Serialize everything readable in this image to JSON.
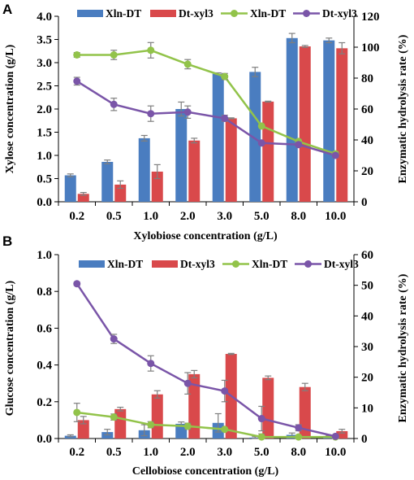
{
  "colors": {
    "bar_xln": "#4a7dc0",
    "bar_dt": "#d9494b",
    "line_xln": "#92c34a",
    "line_dt": "#7a55a8",
    "error": "#7f7f7f",
    "axis": "#000000"
  },
  "chart_data": [
    {
      "panel": "A",
      "type": "bar+line",
      "categories": [
        "0.2",
        "0.5",
        "1.0",
        "2.0",
        "3.0",
        "5.0",
        "8.0",
        "10.0"
      ],
      "xlabel": "Xylobiose concentration (g/L)",
      "ylabel_left": "Xylose concentration (g/L)",
      "ylabel_right": "Enzymatic hydrolysis rate (%)",
      "ylim_left": [
        0,
        4.0
      ],
      "yticks_left": [
        "0.0",
        "0.5",
        "1.0",
        "1.5",
        "2.0",
        "2.5",
        "3.0",
        "3.5",
        "4.0"
      ],
      "ylim_right": [
        0,
        120
      ],
      "yticks_right": [
        "0",
        "20",
        "40",
        "60",
        "80",
        "100",
        "120"
      ],
      "legend": [
        "Xln-DT",
        "Dt-xyl3",
        "Xln-DT",
        "Dt-xyl3"
      ],
      "legend_position": "top",
      "grid": false,
      "bars": [
        {
          "name": "Xln-DT",
          "values": [
            0.57,
            0.86,
            1.37,
            2.0,
            2.76,
            2.8,
            3.53,
            3.48
          ],
          "errors": [
            0.03,
            0.04,
            0.06,
            0.15,
            0.02,
            0.1,
            0.1,
            0.05
          ]
        },
        {
          "name": "Dt-xyl3",
          "values": [
            0.17,
            0.37,
            0.65,
            1.32,
            1.8,
            2.16,
            3.35,
            3.31
          ],
          "errors": [
            0.03,
            0.08,
            0.15,
            0.05,
            0.01,
            0.01,
            0.02,
            0.12
          ]
        }
      ],
      "lines": [
        {
          "name": "Xln-DT",
          "values": [
            95,
            95,
            98,
            89,
            81,
            49,
            39,
            31
          ],
          "errors": [
            1.5,
            3,
            5,
            3,
            2,
            1,
            1.5,
            1.5
          ]
        },
        {
          "name": "Dt-xyl3",
          "values": [
            78,
            63,
            57,
            58,
            54,
            38,
            37,
            30
          ],
          "errors": [
            2.5,
            4,
            5,
            4,
            2,
            1,
            1.5,
            1.5
          ]
        }
      ]
    },
    {
      "panel": "B",
      "type": "bar+line",
      "categories": [
        "0.2",
        "0.5",
        "1.0",
        "2.0",
        "3.0",
        "5.0",
        "8.0",
        "10.0"
      ],
      "xlabel": "Cellobiose concentration (g/L)",
      "ylabel_left": "Glucose concentration (g/L)",
      "ylabel_right": "Enzymatic hydrolysis rate (%)",
      "ylim_left": [
        0,
        1.0
      ],
      "yticks_left": [
        "0.0",
        "0.2",
        "0.4",
        "0.6",
        "0.8",
        "1.0"
      ],
      "ylim_right": [
        0,
        60
      ],
      "yticks_right": [
        "0",
        "10",
        "20",
        "30",
        "40",
        "50",
        "60"
      ],
      "legend": [
        "Xln-DT",
        "Dt-xyl3",
        "Xln-DT",
        "Dt-xyl3"
      ],
      "legend_position": "top",
      "grid": false,
      "bars": [
        {
          "name": "Xln-DT",
          "values": [
            0.015,
            0.035,
            0.045,
            0.08,
            0.085,
            0.005,
            0.02,
            0.01
          ],
          "errors": [
            0.005,
            0.015,
            0.03,
            0.01,
            0.05,
            0.005,
            0.01,
            0.005
          ]
        },
        {
          "name": "Dt-xyl3",
          "values": [
            0.1,
            0.16,
            0.24,
            0.35,
            0.46,
            0.33,
            0.28,
            0.04
          ],
          "errors": [
            0.02,
            0.01,
            0.02,
            0.02,
            0.003,
            0.01,
            0.02,
            0.01
          ]
        }
      ],
      "lines": [
        {
          "name": "Xln-DT",
          "values": [
            8.5,
            7,
            4.5,
            4,
            3,
            0.5,
            0.5,
            0.5
          ],
          "errors": [
            3,
            1,
            1,
            1,
            0.5,
            1,
            0.5,
            0.5
          ]
        },
        {
          "name": "Dt-xyl3",
          "values": [
            50.5,
            32.5,
            24.5,
            18,
            15.5,
            6.5,
            3.5,
            0.7
          ],
          "errors": [
            0.5,
            1.5,
            2.5,
            3.5,
            3.5,
            4,
            1,
            0.5
          ]
        }
      ]
    }
  ]
}
